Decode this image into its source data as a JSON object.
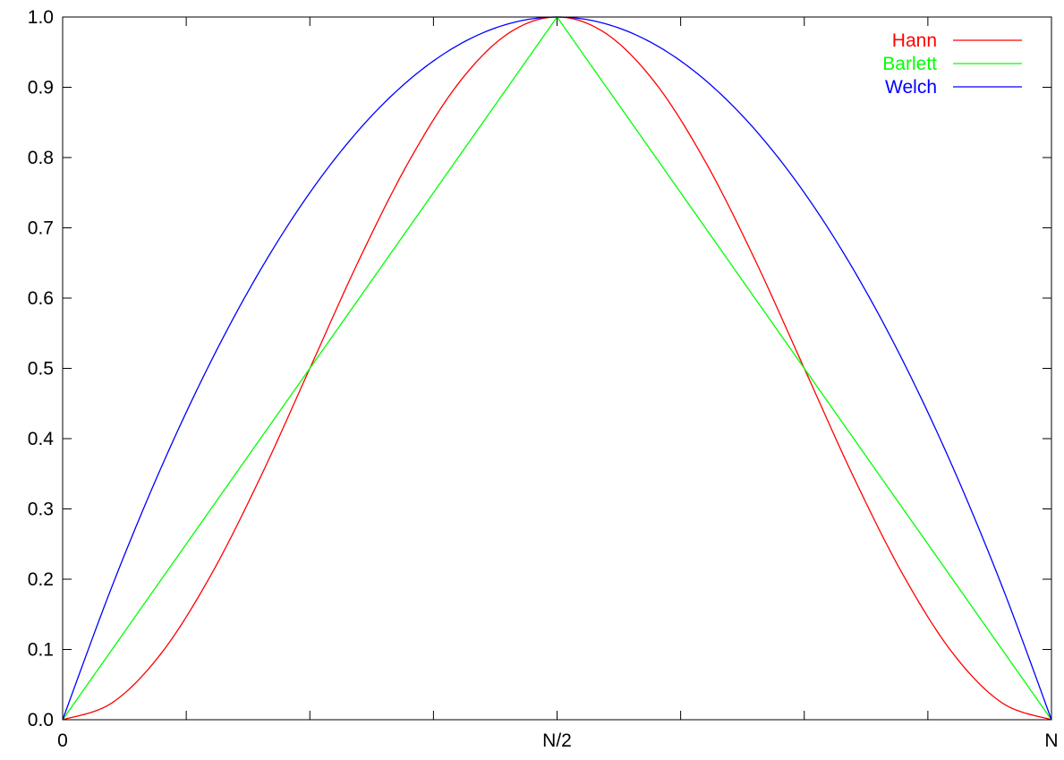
{
  "chart_data": {
    "type": "line",
    "title": "",
    "xlabel": "",
    "ylabel": "",
    "xlim": [
      0,
      1
    ],
    "ylim": [
      0,
      1
    ],
    "grid": false,
    "legend_position": "top-right",
    "x_ticks": [
      {
        "value": 0,
        "label": "0"
      },
      {
        "value": 0.125,
        "label": ""
      },
      {
        "value": 0.25,
        "label": ""
      },
      {
        "value": 0.375,
        "label": ""
      },
      {
        "value": 0.5,
        "label": "N/2"
      },
      {
        "value": 0.625,
        "label": ""
      },
      {
        "value": 0.75,
        "label": ""
      },
      {
        "value": 0.875,
        "label": ""
      },
      {
        "value": 1,
        "label": "N"
      }
    ],
    "y_ticks": [
      {
        "value": 0,
        "label": "0.0"
      },
      {
        "value": 0.1,
        "label": "0.1"
      },
      {
        "value": 0.2,
        "label": "0.2"
      },
      {
        "value": 0.3,
        "label": "0.3"
      },
      {
        "value": 0.4,
        "label": "0.4"
      },
      {
        "value": 0.5,
        "label": "0.5"
      },
      {
        "value": 0.6,
        "label": "0.6"
      },
      {
        "value": 0.7,
        "label": "0.7"
      },
      {
        "value": 0.8,
        "label": "0.8"
      },
      {
        "value": 0.9,
        "label": "0.9"
      },
      {
        "value": 1,
        "label": "1.0"
      }
    ],
    "series": [
      {
        "name": "Hann",
        "color": "#ff0000",
        "x": [
          0,
          0.05,
          0.1,
          0.15,
          0.2,
          0.25,
          0.3,
          0.35,
          0.4,
          0.45,
          0.5,
          0.55,
          0.6,
          0.65,
          0.7,
          0.75,
          0.8,
          0.85,
          0.9,
          0.95,
          1
        ],
        "y": [
          0,
          0.024,
          0.095,
          0.206,
          0.345,
          0.5,
          0.655,
          0.794,
          0.905,
          0.976,
          1,
          0.976,
          0.905,
          0.794,
          0.655,
          0.5,
          0.345,
          0.206,
          0.095,
          0.024,
          0
        ]
      },
      {
        "name": "Barlett",
        "color": "#00ff00",
        "x": [
          0,
          0.5,
          1
        ],
        "y": [
          0,
          1,
          0
        ]
      },
      {
        "name": "Welch",
        "color": "#0000ff",
        "x": [
          0,
          0.05,
          0.1,
          0.15,
          0.2,
          0.25,
          0.3,
          0.35,
          0.4,
          0.45,
          0.5,
          0.55,
          0.6,
          0.65,
          0.7,
          0.75,
          0.8,
          0.85,
          0.9,
          0.95,
          1
        ],
        "y": [
          0,
          0.19,
          0.36,
          0.51,
          0.64,
          0.75,
          0.84,
          0.91,
          0.96,
          0.99,
          1,
          0.99,
          0.96,
          0.91,
          0.84,
          0.75,
          0.64,
          0.51,
          0.36,
          0.19,
          0
        ]
      }
    ]
  }
}
